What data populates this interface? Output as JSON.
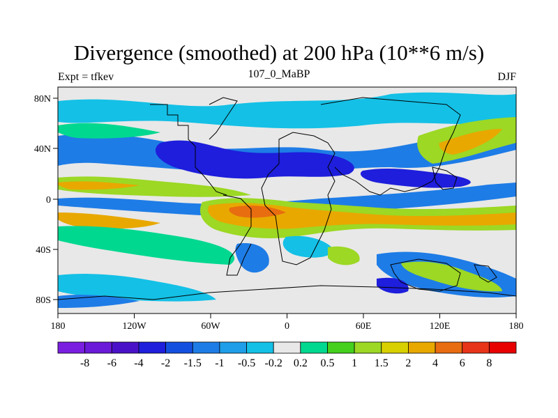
{
  "header": {
    "title": "Divergence (smoothed) at 200 hPa (10**6 m/s)",
    "left": "Expt = tfkev",
    "center": "107_0_MaBP",
    "right": "DJF"
  },
  "axes": {
    "x_ticks": [
      "180",
      "120W",
      "60W",
      "0",
      "60E",
      "120E",
      "180"
    ],
    "y_ticks": [
      "80N",
      "40N",
      "0",
      "40S",
      "80S"
    ]
  },
  "colorbar": {
    "labels": [
      "-8",
      "-6",
      "-4",
      "-2",
      "-1.5",
      "-1",
      "-0.5",
      "-0.2",
      "0.2",
      "0.5",
      "1",
      "1.5",
      "2",
      "4",
      "6",
      "8"
    ],
    "colors": [
      "#7a1fe0",
      "#6a1ad8",
      "#4a12c8",
      "#1e1edc",
      "#1450e0",
      "#1e7ce6",
      "#1e9ee8",
      "#14c0e6",
      "#e8e8e8",
      "#00d890",
      "#44d01c",
      "#9cd824",
      "#d8d000",
      "#e8a800",
      "#e86c10",
      "#e83418",
      "#e80000"
    ]
  },
  "map_colors": {
    "land": "#e8e8e8",
    "strong_neg": "#1e1edc",
    "neg": "#1e7ce6",
    "weak_neg": "#14c0e6",
    "weak_pos": "#00d890",
    "pos": "#9cd824",
    "strong_pos": "#e8a800",
    "max_pos": "#e86c10"
  }
}
